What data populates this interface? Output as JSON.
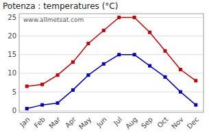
{
  "chart_data": {
    "type": "line",
    "title": "Potenza : temperatures (°C)",
    "categories": [
      "Jan",
      "Feb",
      "Mar",
      "Apr",
      "May",
      "Jun",
      "Jul",
      "Aug",
      "Sep",
      "Oct",
      "Nov",
      "Dec"
    ],
    "series": [
      {
        "color": "#cc0000",
        "marker": "square",
        "line_style": "solid",
        "values": [
          6.5,
          7.0,
          9.5,
          13.0,
          18.0,
          21.5,
          25.0,
          25.0,
          21.0,
          16.0,
          11.0,
          8.0
        ]
      },
      {
        "color": "#0000cc",
        "marker": "square",
        "line_style": "solid",
        "values": [
          0.5,
          1.5,
          2.0,
          5.5,
          9.5,
          12.5,
          15.0,
          15.0,
          12.0,
          9.0,
          5.0,
          1.5
        ]
      }
    ],
    "ylim": [
      -0.5,
      26
    ],
    "yticks": [
      0,
      5,
      10,
      15,
      20,
      25
    ],
    "grid": true,
    "annotations": [
      "www.allmetsat.com"
    ]
  }
}
